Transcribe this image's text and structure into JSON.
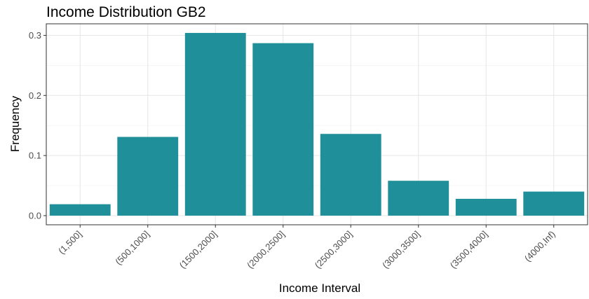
{
  "chart_data": {
    "type": "bar",
    "title": "Income Distribution GB2",
    "xlabel": "Income Interval",
    "ylabel": "Frequency",
    "categories": [
      "(1,500]",
      "(500,1000]",
      "(1500,2000]",
      "(2000,2500]",
      "(2500,3000]",
      "(3000,3500]",
      "(3500,4000]",
      "(4000,Inf)"
    ],
    "values": [
      0.019,
      0.131,
      0.304,
      0.287,
      0.136,
      0.058,
      0.028,
      0.04
    ],
    "ylim": [
      -0.0152,
      0.3192
    ],
    "yticks": [
      0.0,
      0.1,
      0.2,
      0.3
    ],
    "ytick_labels": [
      "0.0",
      "0.1",
      "0.2",
      "0.3"
    ],
    "bar_color": "#1f9099",
    "grid": true
  }
}
